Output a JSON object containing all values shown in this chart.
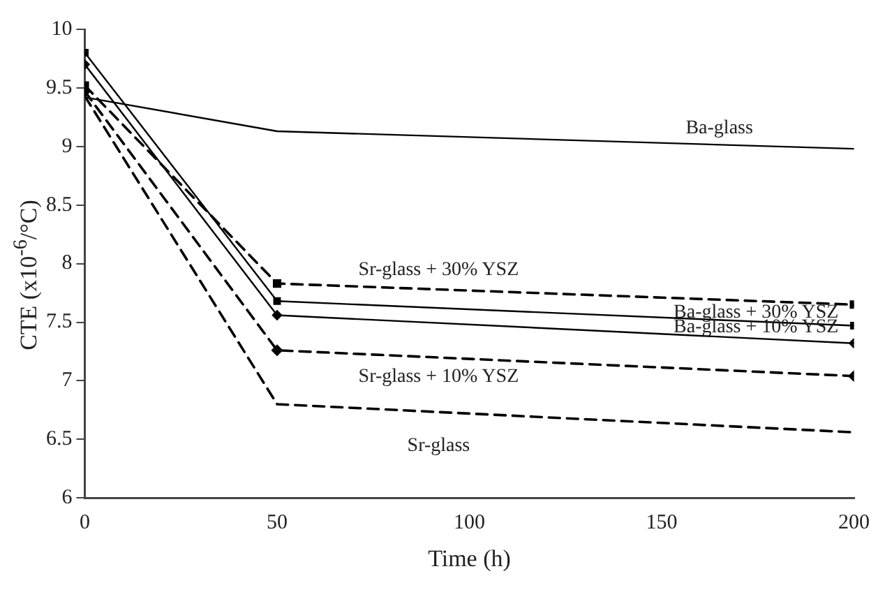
{
  "chart_data": {
    "type": "line",
    "xlabel": "Time (h)",
    "ylabel": "CTE (x10$^{-6}$/°C)",
    "x": [
      0,
      50,
      200
    ],
    "xlim": [
      0,
      200
    ],
    "xticks": [
      0,
      50,
      100,
      150,
      200
    ],
    "ylim": [
      6,
      10
    ],
    "yticks": [
      6,
      6.5,
      7,
      7.5,
      8,
      8.5,
      9,
      9.5,
      10
    ],
    "grid": false,
    "legend": false,
    "series": [
      {
        "name": "Ba-glass",
        "color": "#000000",
        "values": [
          9.42,
          9.13,
          8.98
        ],
        "line_style": "solid",
        "marker": "none"
      },
      {
        "name": "Sr-glass + 30% YSZ",
        "color": "#000000",
        "values": [
          9.52,
          7.83,
          7.65
        ],
        "line_style": "dashed",
        "marker": "square"
      },
      {
        "name": "Ba-glass + 30% YSZ",
        "color": "#000000",
        "values": [
          9.8,
          7.68,
          7.47
        ],
        "line_style": "solid",
        "marker": "square"
      },
      {
        "name": "Ba-glass + 10% YSZ",
        "color": "#000000",
        "values": [
          9.7,
          7.56,
          7.32
        ],
        "line_style": "solid",
        "marker": "diamond"
      },
      {
        "name": "Sr-glass + 10% YSZ",
        "color": "#000000",
        "values": [
          9.47,
          7.26,
          7.04
        ],
        "line_style": "dashed",
        "marker": "diamond"
      },
      {
        "name": "Sr-glass",
        "color": "#000000",
        "values": [
          9.43,
          6.8,
          6.56
        ],
        "line_style": "dashed",
        "marker": "none"
      }
    ]
  }
}
